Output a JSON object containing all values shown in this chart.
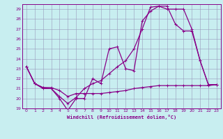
{
  "xlabel": "Windchill (Refroidissement éolien,°C)",
  "bg_color": "#c8eef0",
  "grid_color": "#9999bb",
  "line_color": "#880088",
  "xlim": [
    -0.5,
    23.5
  ],
  "ylim": [
    19,
    29.5
  ],
  "xticks": [
    0,
    1,
    2,
    3,
    4,
    5,
    6,
    7,
    8,
    9,
    10,
    11,
    12,
    13,
    14,
    15,
    16,
    17,
    18,
    19,
    20,
    21,
    22,
    23
  ],
  "yticks": [
    19,
    20,
    21,
    22,
    23,
    24,
    25,
    26,
    27,
    28,
    29
  ],
  "line1_x": [
    0,
    1,
    2,
    3,
    4,
    5,
    6,
    7,
    8,
    9,
    10,
    11,
    12,
    13,
    14,
    15,
    16,
    17,
    18,
    19,
    20,
    21,
    22,
    23
  ],
  "line1_y": [
    23.2,
    21.5,
    21.1,
    21.1,
    20.8,
    20.2,
    20.5,
    20.5,
    20.5,
    20.5,
    20.6,
    20.7,
    20.8,
    21.0,
    21.1,
    21.2,
    21.3,
    21.3,
    21.3,
    21.3,
    21.3,
    21.3,
    21.3,
    21.4
  ],
  "line2_x": [
    0,
    1,
    2,
    3,
    4,
    5,
    6,
    7,
    8,
    9,
    10,
    11,
    12,
    13,
    14,
    15,
    16,
    17,
    18,
    19,
    20,
    21,
    22,
    23
  ],
  "line2_y": [
    23.2,
    21.5,
    21.1,
    21.0,
    20.2,
    19.5,
    20.1,
    21.0,
    21.5,
    21.8,
    22.5,
    23.2,
    23.8,
    25.0,
    27.0,
    29.2,
    29.3,
    29.0,
    29.0,
    29.0,
    27.0,
    23.8,
    21.4,
    21.4
  ],
  "line3_x": [
    0,
    1,
    2,
    3,
    4,
    5,
    6,
    7,
    8,
    9,
    10,
    11,
    12,
    13,
    14,
    15,
    16,
    17,
    18,
    19,
    20,
    21,
    22,
    23
  ],
  "line3_y": [
    23.2,
    21.5,
    21.0,
    21.0,
    20.0,
    18.8,
    20.0,
    20.0,
    22.0,
    21.5,
    25.0,
    25.2,
    23.0,
    22.8,
    27.8,
    28.8,
    29.3,
    29.3,
    27.5,
    26.8,
    26.8,
    23.8,
    21.4,
    21.4
  ]
}
